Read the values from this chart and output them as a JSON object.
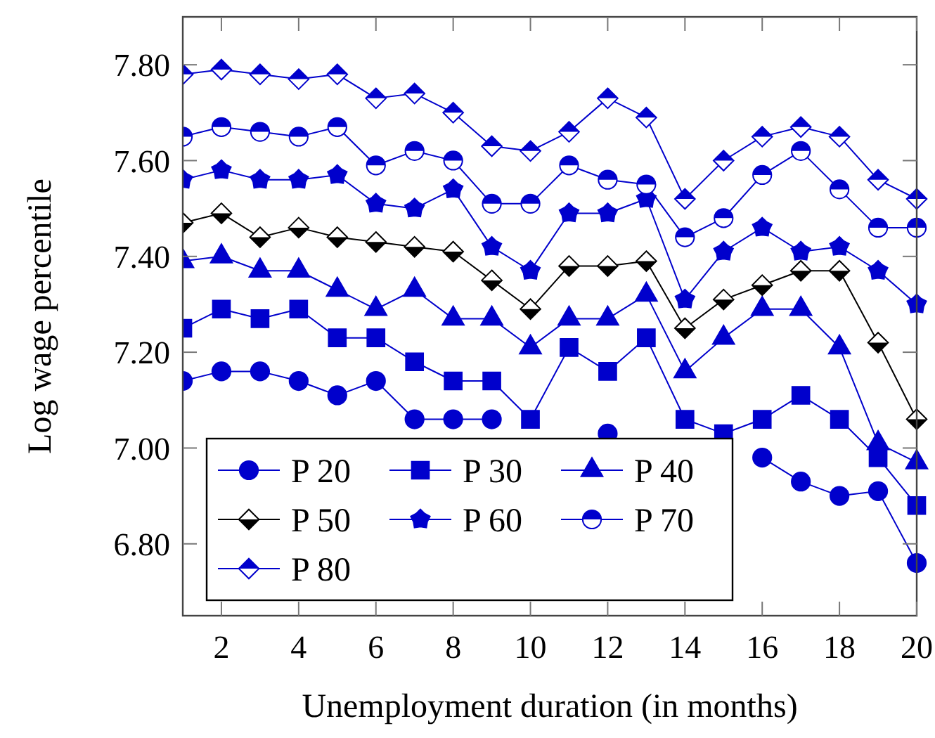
{
  "chart_data": {
    "type": "line",
    "xlabel": "Unemployment duration (in months)",
    "ylabel": "Log wage percentile",
    "x": [
      1,
      2,
      3,
      4,
      5,
      6,
      7,
      8,
      9,
      10,
      11,
      12,
      13,
      14,
      15,
      16,
      17,
      18,
      19,
      20
    ],
    "xlim": [
      1,
      20
    ],
    "xticks": [
      2,
      4,
      6,
      8,
      10,
      12,
      14,
      16,
      18,
      20
    ],
    "ylim": [
      6.65,
      7.9
    ],
    "yticks": [
      {
        "value": 6.8,
        "label": "6.80"
      },
      {
        "value": 7.0,
        "label": "7.00"
      },
      {
        "value": 7.2,
        "label": "7.20"
      },
      {
        "value": 7.4,
        "label": "7.40"
      },
      {
        "value": 7.6,
        "label": "7.60"
      },
      {
        "value": 7.8,
        "label": "7.80"
      }
    ],
    "grid": false,
    "legend": "bottom left",
    "series": [
      {
        "name": "P 20",
        "color": "#0000cc",
        "marker": "circle",
        "values": [
          7.14,
          7.16,
          7.16,
          7.14,
          7.11,
          7.14,
          7.06,
          7.06,
          7.06,
          null,
          null,
          7.03,
          null,
          null,
          null,
          6.98,
          6.93,
          6.9,
          6.91,
          6.76
        ]
      },
      {
        "name": "P 30",
        "color": "#0000cc",
        "marker": "square",
        "values": [
          7.25,
          7.29,
          7.27,
          7.29,
          7.23,
          7.23,
          7.18,
          7.14,
          7.14,
          7.06,
          7.21,
          7.16,
          7.23,
          7.06,
          7.03,
          7.06,
          7.11,
          7.06,
          6.98,
          6.88
        ]
      },
      {
        "name": "P 40",
        "color": "#0000cc",
        "marker": "triangle",
        "values": [
          7.39,
          7.4,
          7.37,
          7.37,
          7.33,
          7.29,
          7.33,
          7.27,
          7.27,
          7.21,
          7.27,
          7.27,
          7.32,
          7.16,
          7.23,
          7.29,
          7.29,
          7.21,
          7.01,
          6.97
        ]
      },
      {
        "name": "P 50",
        "color": "#000000",
        "marker": "diamond",
        "values": [
          7.47,
          7.49,
          7.44,
          7.46,
          7.44,
          7.43,
          7.42,
          7.41,
          7.35,
          7.29,
          7.38,
          7.38,
          7.39,
          7.25,
          7.31,
          7.34,
          7.37,
          7.37,
          7.22,
          7.06
        ]
      },
      {
        "name": "P 60",
        "color": "#0000cc",
        "marker": "star",
        "values": [
          7.56,
          7.58,
          7.56,
          7.56,
          7.57,
          7.51,
          7.5,
          7.54,
          7.42,
          7.37,
          7.49,
          7.49,
          7.52,
          7.31,
          7.41,
          7.46,
          7.41,
          7.42,
          7.37,
          7.3
        ]
      },
      {
        "name": "P 70",
        "color": "#0000cc",
        "marker": "circle",
        "values": [
          7.65,
          7.67,
          7.66,
          7.65,
          7.67,
          7.59,
          7.62,
          7.6,
          7.51,
          7.51,
          7.59,
          7.56,
          7.55,
          7.44,
          7.48,
          7.57,
          7.62,
          7.54,
          7.46,
          7.46
        ]
      },
      {
        "name": "P 80",
        "color": "#0000cc",
        "marker": "diamond",
        "values": [
          7.78,
          7.79,
          7.78,
          7.77,
          7.78,
          7.73,
          7.74,
          7.7,
          7.63,
          7.62,
          7.66,
          7.73,
          7.69,
          7.52,
          7.6,
          7.65,
          7.67,
          7.65,
          7.56,
          7.52
        ]
      }
    ]
  }
}
